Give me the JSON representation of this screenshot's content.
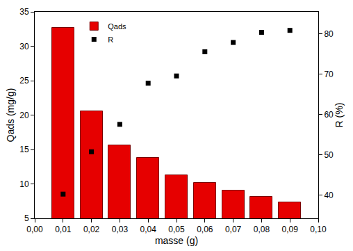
{
  "chart_data": {
    "type": "bar",
    "x_label": "masse (g)",
    "y_label": "Qads (mg/g)",
    "y2_label": "R (%)",
    "x": [
      0.01,
      0.02,
      0.03,
      0.04,
      0.05,
      0.06,
      0.07,
      0.08,
      0.09
    ],
    "series": [
      {
        "name": "Qads",
        "type": "bar",
        "color": "#e60000",
        "values": [
          32.7,
          20.6,
          15.6,
          13.8,
          11.3,
          10.2,
          9.05,
          8.15,
          7.3
        ]
      },
      {
        "name": "R",
        "type": "scatter",
        "color": "#000000",
        "marker": "square",
        "axis": "y2",
        "values": [
          40.2,
          50.7,
          57.5,
          67.7,
          69.5,
          75.5,
          77.8,
          80.3,
          80.8
        ]
      }
    ],
    "xlim": [
      0.0,
      0.1
    ],
    "xticks": [
      {
        "value": 0.0,
        "label": "0,00"
      },
      {
        "value": 0.01,
        "label": "0,01"
      },
      {
        "value": 0.02,
        "label": "0,02"
      },
      {
        "value": 0.03,
        "label": "0,03"
      },
      {
        "value": 0.04,
        "label": "0,04"
      },
      {
        "value": 0.05,
        "label": "0,05"
      },
      {
        "value": 0.06,
        "label": "0,06"
      },
      {
        "value": 0.07,
        "label": "0,07"
      },
      {
        "value": 0.08,
        "label": "0,08"
      },
      {
        "value": 0.09,
        "label": "0,09"
      },
      {
        "value": 0.1,
        "label": "0,10"
      }
    ],
    "ylim": [
      5,
      35
    ],
    "yticks": [
      5,
      10,
      15,
      20,
      25,
      30,
      35
    ],
    "y2lim": [
      34.2,
      85.4
    ],
    "y2ticks": [
      40,
      50,
      60,
      70,
      80
    ],
    "legend": "upper left",
    "grid": false
  }
}
